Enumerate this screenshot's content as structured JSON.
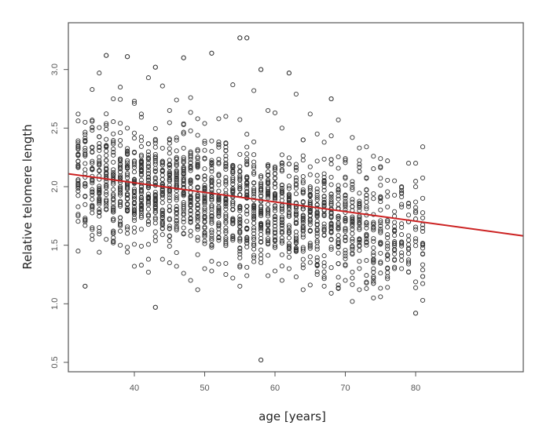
{
  "chart_data": {
    "type": "scatter",
    "title": "",
    "xlabel": "age [years]",
    "ylabel": "Relative telomere length",
    "xlim": [
      30.6,
      83.2
    ],
    "ylim": [
      0.42,
      3.4
    ],
    "x_ticks": [
      40,
      50,
      60,
      70,
      80
    ],
    "x_tick_labels": [
      "40",
      "50",
      "60",
      "70",
      "80"
    ],
    "y_ticks": [
      0.5,
      1.0,
      1.5,
      2.0,
      2.5,
      3.0
    ],
    "y_tick_labels": [
      "0.5",
      "1.0",
      "1.5",
      "2.0",
      "2.5",
      "3.0"
    ],
    "grid": false,
    "legend": null,
    "marker": "open-circle",
    "marker_color": "#333333",
    "regression_line": {
      "color": "#cc2222",
      "x": [
        30.6,
        83.2
      ],
      "y": [
        2.11,
        1.58
      ],
      "slope_per_year": -0.0101
    },
    "columns": [
      {
        "age": 32,
        "min": 1.45,
        "max": 2.62,
        "n": 30
      },
      {
        "age": 33,
        "min": 1.15,
        "max": 2.55,
        "n": 28
      },
      {
        "age": 34,
        "min": 1.55,
        "max": 2.83,
        "n": 34
      },
      {
        "age": 35,
        "min": 1.44,
        "max": 2.97,
        "n": 38
      },
      {
        "age": 36,
        "min": 1.55,
        "max": 3.12,
        "n": 36
      },
      {
        "age": 37,
        "min": 1.52,
        "max": 2.75,
        "n": 40
      },
      {
        "age": 38,
        "min": 1.5,
        "max": 2.85,
        "n": 40
      },
      {
        "age": 39,
        "min": 1.44,
        "max": 3.11,
        "n": 42
      },
      {
        "age": 40,
        "min": 1.32,
        "max": 2.73,
        "n": 44
      },
      {
        "age": 41,
        "min": 1.33,
        "max": 2.62,
        "n": 46
      },
      {
        "age": 42,
        "min": 1.27,
        "max": 2.93,
        "n": 44
      },
      {
        "age": 43,
        "min": 0.97,
        "max": 3.02,
        "n": 46
      },
      {
        "age": 44,
        "min": 1.38,
        "max": 2.86,
        "n": 44
      },
      {
        "age": 45,
        "min": 1.35,
        "max": 2.65,
        "n": 42
      },
      {
        "age": 46,
        "min": 1.32,
        "max": 2.74,
        "n": 44
      },
      {
        "age": 47,
        "min": 1.26,
        "max": 3.1,
        "n": 44
      },
      {
        "age": 48,
        "min": 1.2,
        "max": 2.76,
        "n": 42
      },
      {
        "age": 49,
        "min": 1.12,
        "max": 2.58,
        "n": 40
      },
      {
        "age": 50,
        "min": 1.3,
        "max": 2.54,
        "n": 42
      },
      {
        "age": 51,
        "min": 1.28,
        "max": 3.14,
        "n": 44
      },
      {
        "age": 52,
        "min": 1.34,
        "max": 2.58,
        "n": 40
      },
      {
        "age": 53,
        "min": 1.25,
        "max": 2.6,
        "n": 42
      },
      {
        "age": 54,
        "min": 1.22,
        "max": 2.87,
        "n": 40
      },
      {
        "age": 55,
        "min": 1.15,
        "max": 3.27,
        "n": 42
      },
      {
        "age": 56,
        "min": 1.24,
        "max": 3.27,
        "n": 44
      },
      {
        "age": 57,
        "min": 1.36,
        "max": 2.82,
        "n": 40
      },
      {
        "age": 58,
        "min": 0.52,
        "max": 3.0,
        "n": 42
      },
      {
        "age": 59,
        "min": 1.24,
        "max": 2.65,
        "n": 40
      },
      {
        "age": 60,
        "min": 1.28,
        "max": 2.63,
        "n": 40
      },
      {
        "age": 61,
        "min": 1.2,
        "max": 2.5,
        "n": 38
      },
      {
        "age": 62,
        "min": 1.3,
        "max": 2.97,
        "n": 38
      },
      {
        "age": 63,
        "min": 1.23,
        "max": 2.79,
        "n": 38
      },
      {
        "age": 64,
        "min": 1.12,
        "max": 2.4,
        "n": 38
      },
      {
        "age": 65,
        "min": 1.16,
        "max": 2.62,
        "n": 36
      },
      {
        "age": 66,
        "min": 1.25,
        "max": 2.45,
        "n": 36
      },
      {
        "age": 67,
        "min": 1.15,
        "max": 2.38,
        "n": 36
      },
      {
        "age": 68,
        "min": 1.09,
        "max": 2.75,
        "n": 36
      },
      {
        "age": 69,
        "min": 1.13,
        "max": 2.57,
        "n": 34
      },
      {
        "age": 70,
        "min": 1.2,
        "max": 2.24,
        "n": 32
      },
      {
        "age": 71,
        "min": 1.02,
        "max": 2.42,
        "n": 30
      },
      {
        "age": 72,
        "min": 1.12,
        "max": 2.33,
        "n": 30
      },
      {
        "age": 73,
        "min": 1.13,
        "max": 2.34,
        "n": 28
      },
      {
        "age": 74,
        "min": 1.05,
        "max": 2.26,
        "n": 26
      },
      {
        "age": 75,
        "min": 1.06,
        "max": 2.24,
        "n": 24
      },
      {
        "age": 76,
        "min": 1.14,
        "max": 2.22,
        "n": 22
      },
      {
        "age": 77,
        "min": 1.3,
        "max": 2.05,
        "n": 20
      },
      {
        "age": 78,
        "min": 1.3,
        "max": 2.0,
        "n": 18
      },
      {
        "age": 79,
        "min": 1.27,
        "max": 2.2,
        "n": 16
      },
      {
        "age": 80,
        "min": 0.92,
        "max": 2.2,
        "n": 14
      },
      {
        "age": 81,
        "min": 1.03,
        "max": 2.34,
        "n": 18
      }
    ],
    "notable_outliers": [
      {
        "x": 55,
        "y": 3.27
      },
      {
        "x": 56,
        "y": 3.27
      },
      {
        "x": 51,
        "y": 3.14
      },
      {
        "x": 36,
        "y": 3.12
      },
      {
        "x": 39,
        "y": 3.11
      },
      {
        "x": 47,
        "y": 3.1
      },
      {
        "x": 43,
        "y": 3.02
      },
      {
        "x": 58,
        "y": 3.0
      },
      {
        "x": 62,
        "y": 2.97
      },
      {
        "x": 68,
        "y": 2.75
      },
      {
        "x": 43,
        "y": 0.97
      },
      {
        "x": 33,
        "y": 1.15
      },
      {
        "x": 58,
        "y": 0.52
      },
      {
        "x": 80,
        "y": 0.92
      }
    ]
  }
}
